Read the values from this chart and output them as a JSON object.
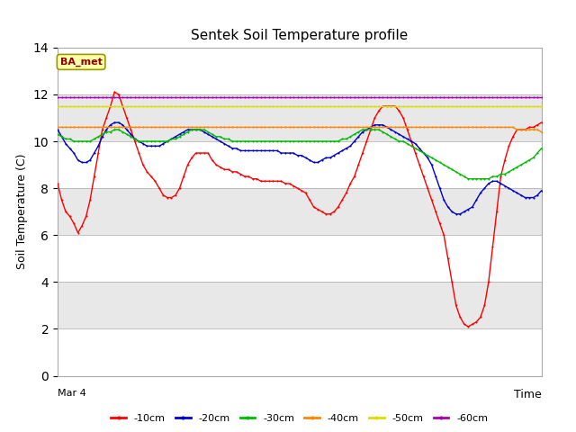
{
  "title": "Sentek Soil Temperature profile",
  "xlabel_right": "Time",
  "ylabel": "Soil Temperature (C)",
  "x_label_start": "Mar 4",
  "ylim": [
    0,
    14
  ],
  "yticks": [
    0,
    2,
    4,
    6,
    8,
    10,
    12,
    14
  ],
  "annotation_label": "BA_met",
  "annotation_color": "#8B0000",
  "annotation_bg": "#FFFFAA",
  "annotation_border": "#999900",
  "bg_color": "#ffffff",
  "band_colors": [
    "#ffffff",
    "#e8e8e8"
  ],
  "colors": {
    "-10cm": "#ff0000",
    "-20cm": "#0000cc",
    "-30cm": "#00bb00",
    "-40cm": "#ff8800",
    "-50cm": "#dddd00",
    "-60cm": "#aa00aa"
  },
  "n_points": 120,
  "series": {
    "-10cm": [
      8.2,
      7.5,
      7.0,
      6.8,
      6.5,
      6.1,
      6.4,
      6.8,
      7.5,
      8.5,
      9.5,
      10.5,
      11.0,
      11.5,
      12.1,
      12.0,
      11.5,
      11.0,
      10.5,
      10.0,
      9.5,
      9.0,
      8.7,
      8.5,
      8.3,
      8.0,
      7.7,
      7.6,
      7.6,
      7.7,
      8.0,
      8.5,
      9.0,
      9.3,
      9.5,
      9.5,
      9.5,
      9.5,
      9.2,
      9.0,
      8.9,
      8.8,
      8.8,
      8.7,
      8.7,
      8.6,
      8.5,
      8.5,
      8.4,
      8.4,
      8.3,
      8.3,
      8.3,
      8.3,
      8.3,
      8.3,
      8.2,
      8.2,
      8.1,
      8.0,
      7.9,
      7.8,
      7.5,
      7.2,
      7.1,
      7.0,
      6.9,
      6.9,
      7.0,
      7.2,
      7.5,
      7.8,
      8.2,
      8.5,
      9.0,
      9.5,
      10.0,
      10.5,
      11.0,
      11.3,
      11.5,
      11.5,
      11.5,
      11.5,
      11.3,
      11.0,
      10.5,
      10.0,
      9.5,
      9.0,
      8.5,
      8.0,
      7.5,
      7.0,
      6.5,
      6.0,
      5.0,
      4.0,
      3.0,
      2.5,
      2.2,
      2.1,
      2.2,
      2.3,
      2.5,
      3.0,
      4.0,
      5.5,
      7.0,
      8.5,
      9.2,
      9.8,
      10.2,
      10.5,
      10.5,
      10.5,
      10.6,
      10.6,
      10.7,
      10.8
    ],
    "-20cm": [
      10.5,
      10.2,
      9.9,
      9.7,
      9.5,
      9.2,
      9.1,
      9.1,
      9.2,
      9.5,
      9.8,
      10.2,
      10.5,
      10.7,
      10.8,
      10.8,
      10.7,
      10.5,
      10.3,
      10.1,
      10.0,
      9.9,
      9.8,
      9.8,
      9.8,
      9.8,
      9.9,
      10.0,
      10.1,
      10.2,
      10.3,
      10.4,
      10.5,
      10.5,
      10.5,
      10.5,
      10.4,
      10.3,
      10.2,
      10.1,
      10.0,
      9.9,
      9.8,
      9.7,
      9.7,
      9.6,
      9.6,
      9.6,
      9.6,
      9.6,
      9.6,
      9.6,
      9.6,
      9.6,
      9.6,
      9.5,
      9.5,
      9.5,
      9.5,
      9.4,
      9.4,
      9.3,
      9.2,
      9.1,
      9.1,
      9.2,
      9.3,
      9.3,
      9.4,
      9.5,
      9.6,
      9.7,
      9.8,
      10.0,
      10.2,
      10.4,
      10.5,
      10.6,
      10.7,
      10.7,
      10.7,
      10.6,
      10.5,
      10.4,
      10.3,
      10.2,
      10.1,
      10.0,
      9.9,
      9.7,
      9.5,
      9.3,
      9.0,
      8.5,
      8.0,
      7.5,
      7.2,
      7.0,
      6.9,
      6.9,
      7.0,
      7.1,
      7.2,
      7.5,
      7.8,
      8.0,
      8.2,
      8.3,
      8.3,
      8.2,
      8.1,
      8.0,
      7.9,
      7.8,
      7.7,
      7.6,
      7.6,
      7.6,
      7.7,
      7.9
    ],
    "-30cm": [
      10.3,
      10.2,
      10.1,
      10.1,
      10.0,
      10.0,
      10.0,
      10.0,
      10.0,
      10.1,
      10.2,
      10.3,
      10.4,
      10.4,
      10.5,
      10.5,
      10.4,
      10.3,
      10.2,
      10.1,
      10.0,
      10.0,
      10.0,
      10.0,
      10.0,
      10.0,
      10.0,
      10.0,
      10.1,
      10.1,
      10.2,
      10.3,
      10.4,
      10.5,
      10.5,
      10.5,
      10.5,
      10.4,
      10.3,
      10.2,
      10.2,
      10.1,
      10.1,
      10.0,
      10.0,
      10.0,
      10.0,
      10.0,
      10.0,
      10.0,
      10.0,
      10.0,
      10.0,
      10.0,
      10.0,
      10.0,
      10.0,
      10.0,
      10.0,
      10.0,
      10.0,
      10.0,
      10.0,
      10.0,
      10.0,
      10.0,
      10.0,
      10.0,
      10.0,
      10.0,
      10.1,
      10.1,
      10.2,
      10.3,
      10.4,
      10.5,
      10.5,
      10.5,
      10.5,
      10.5,
      10.4,
      10.3,
      10.2,
      10.1,
      10.0,
      10.0,
      9.9,
      9.8,
      9.7,
      9.6,
      9.5,
      9.4,
      9.3,
      9.2,
      9.1,
      9.0,
      8.9,
      8.8,
      8.7,
      8.6,
      8.5,
      8.4,
      8.4,
      8.4,
      8.4,
      8.4,
      8.4,
      8.5,
      8.5,
      8.6,
      8.6,
      8.7,
      8.8,
      8.9,
      9.0,
      9.1,
      9.2,
      9.3,
      9.5,
      9.7
    ],
    "-40cm": [
      10.6,
      10.6,
      10.6,
      10.6,
      10.6,
      10.6,
      10.6,
      10.6,
      10.6,
      10.6,
      10.6,
      10.6,
      10.6,
      10.6,
      10.6,
      10.6,
      10.6,
      10.6,
      10.6,
      10.6,
      10.6,
      10.6,
      10.6,
      10.6,
      10.6,
      10.6,
      10.6,
      10.6,
      10.6,
      10.6,
      10.6,
      10.6,
      10.6,
      10.6,
      10.6,
      10.6,
      10.6,
      10.6,
      10.6,
      10.6,
      10.6,
      10.6,
      10.6,
      10.6,
      10.6,
      10.6,
      10.6,
      10.6,
      10.6,
      10.6,
      10.6,
      10.6,
      10.6,
      10.6,
      10.6,
      10.6,
      10.6,
      10.6,
      10.6,
      10.6,
      10.6,
      10.6,
      10.6,
      10.6,
      10.6,
      10.6,
      10.6,
      10.6,
      10.6,
      10.6,
      10.6,
      10.6,
      10.6,
      10.6,
      10.6,
      10.6,
      10.6,
      10.6,
      10.6,
      10.6,
      10.6,
      10.6,
      10.6,
      10.6,
      10.6,
      10.6,
      10.6,
      10.6,
      10.6,
      10.6,
      10.6,
      10.6,
      10.6,
      10.6,
      10.6,
      10.6,
      10.6,
      10.6,
      10.6,
      10.6,
      10.6,
      10.6,
      10.6,
      10.6,
      10.6,
      10.6,
      10.6,
      10.6,
      10.6,
      10.6,
      10.6,
      10.6,
      10.6,
      10.5,
      10.5,
      10.5,
      10.5,
      10.5,
      10.5,
      10.4
    ],
    "-50cm": [
      11.5,
      11.5,
      11.5,
      11.5,
      11.5,
      11.5,
      11.5,
      11.5,
      11.5,
      11.5,
      11.5,
      11.5,
      11.5,
      11.5,
      11.5,
      11.5,
      11.5,
      11.5,
      11.5,
      11.5,
      11.5,
      11.5,
      11.5,
      11.5,
      11.5,
      11.5,
      11.5,
      11.5,
      11.5,
      11.5,
      11.5,
      11.5,
      11.5,
      11.5,
      11.5,
      11.5,
      11.5,
      11.5,
      11.5,
      11.5,
      11.5,
      11.5,
      11.5,
      11.5,
      11.5,
      11.5,
      11.5,
      11.5,
      11.5,
      11.5,
      11.5,
      11.5,
      11.5,
      11.5,
      11.5,
      11.5,
      11.5,
      11.5,
      11.5,
      11.5,
      11.5,
      11.5,
      11.5,
      11.5,
      11.5,
      11.5,
      11.5,
      11.5,
      11.5,
      11.5,
      11.5,
      11.5,
      11.5,
      11.5,
      11.5,
      11.5,
      11.5,
      11.5,
      11.5,
      11.5,
      11.5,
      11.5,
      11.5,
      11.5,
      11.5,
      11.5,
      11.5,
      11.5,
      11.5,
      11.5,
      11.5,
      11.5,
      11.5,
      11.5,
      11.5,
      11.5,
      11.5,
      11.5,
      11.5,
      11.5,
      11.5,
      11.5,
      11.5,
      11.5,
      11.5,
      11.5,
      11.5,
      11.5,
      11.5,
      11.5,
      11.5,
      11.5,
      11.5,
      11.5,
      11.5,
      11.5,
      11.5,
      11.5,
      11.5,
      11.5
    ],
    "-60cm": [
      11.9,
      11.9,
      11.9,
      11.9,
      11.9,
      11.9,
      11.9,
      11.9,
      11.9,
      11.9,
      11.9,
      11.9,
      11.9,
      11.9,
      11.9,
      11.9,
      11.9,
      11.9,
      11.9,
      11.9,
      11.9,
      11.9,
      11.9,
      11.9,
      11.9,
      11.9,
      11.9,
      11.9,
      11.9,
      11.9,
      11.9,
      11.9,
      11.9,
      11.9,
      11.9,
      11.9,
      11.9,
      11.9,
      11.9,
      11.9,
      11.9,
      11.9,
      11.9,
      11.9,
      11.9,
      11.9,
      11.9,
      11.9,
      11.9,
      11.9,
      11.9,
      11.9,
      11.9,
      11.9,
      11.9,
      11.9,
      11.9,
      11.9,
      11.9,
      11.9,
      11.9,
      11.9,
      11.9,
      11.9,
      11.9,
      11.9,
      11.9,
      11.9,
      11.9,
      11.9,
      11.9,
      11.9,
      11.9,
      11.9,
      11.9,
      11.9,
      11.9,
      11.9,
      11.9,
      11.9,
      11.9,
      11.9,
      11.9,
      11.9,
      11.9,
      11.9,
      11.9,
      11.9,
      11.9,
      11.9,
      11.9,
      11.9,
      11.9,
      11.9,
      11.9,
      11.9,
      11.9,
      11.9,
      11.9,
      11.9,
      11.9,
      11.9,
      11.9,
      11.9,
      11.9,
      11.9,
      11.9,
      11.9,
      11.9,
      11.9,
      11.9,
      11.9,
      11.9,
      11.9,
      11.9,
      11.9,
      11.9,
      11.9,
      11.9,
      11.9
    ]
  }
}
